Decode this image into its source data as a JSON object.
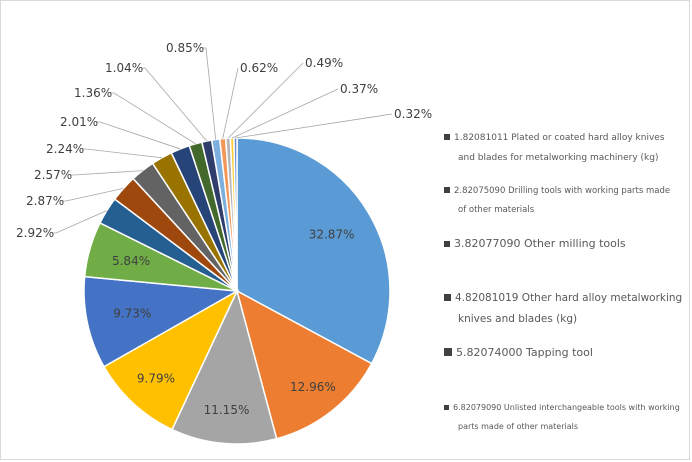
{
  "chart_data": {
    "type": "pie",
    "title": "",
    "legend_position": "right",
    "slices": [
      {
        "value": 32.87,
        "label": "32.87%",
        "color": "#5b9bd5"
      },
      {
        "value": 12.96,
        "label": "12.96%",
        "color": "#ed7d31"
      },
      {
        "value": 11.15,
        "label": "11.15%",
        "color": "#a5a5a5"
      },
      {
        "value": 9.79,
        "label": "9.79%",
        "color": "#ffc000"
      },
      {
        "value": 9.73,
        "label": "9.73%",
        "color": "#4472c4"
      },
      {
        "value": 5.84,
        "label": "5.84%",
        "color": "#70ad47"
      },
      {
        "value": 2.92,
        "label": "2.92%",
        "color": "#255e91"
      },
      {
        "value": 2.87,
        "label": "2.87%",
        "color": "#9e480e"
      },
      {
        "value": 2.57,
        "label": "2.57%",
        "color": "#636363"
      },
      {
        "value": 2.24,
        "label": "2.24%",
        "color": "#997300"
      },
      {
        "value": 2.01,
        "label": "2.01%",
        "color": "#264478"
      },
      {
        "value": 1.36,
        "label": "1.36%",
        "color": "#43682b"
      },
      {
        "value": 1.04,
        "label": "1.04%",
        "color": "#2e3d6b"
      },
      {
        "value": 0.85,
        "label": "0.85%",
        "color": "#7cafdd"
      },
      {
        "value": 0.62,
        "label": "0.62%",
        "color": "#f1975a"
      },
      {
        "value": 0.49,
        "label": "0.49%",
        "color": "#b7b7b7"
      },
      {
        "value": 0.37,
        "label": "0.37%",
        "color": "#ffcd33"
      },
      {
        "value": 0.32,
        "label": "0.32%",
        "color": "#698ed0"
      }
    ],
    "legend": [
      {
        "lines": [
          "1.82081011 Plated or coated hard alloy knives",
          "and blades for metalworking machinery (kg)"
        ],
        "color": "#5b9bd5"
      },
      {
        "lines": [
          "2.82075090 Drilling tools with working parts made",
          "of other materials"
        ],
        "color": "#ed7d31"
      },
      {
        "lines": [
          "3.82077090 Other milling tools"
        ],
        "color": "#a5a5a5"
      },
      {
        "lines": [
          "4.82081019 Other hard alloy metalworking",
          "knives and blades (kg)"
        ],
        "color": "#ffc000"
      },
      {
        "lines": [
          "5.82074000 Tapping tool"
        ],
        "color": "#4472c4"
      },
      {
        "lines": [
          "6.82079090 Unlisted interchangeable tools with working",
          "parts made of other materials"
        ],
        "color": "#70ad47"
      }
    ]
  }
}
